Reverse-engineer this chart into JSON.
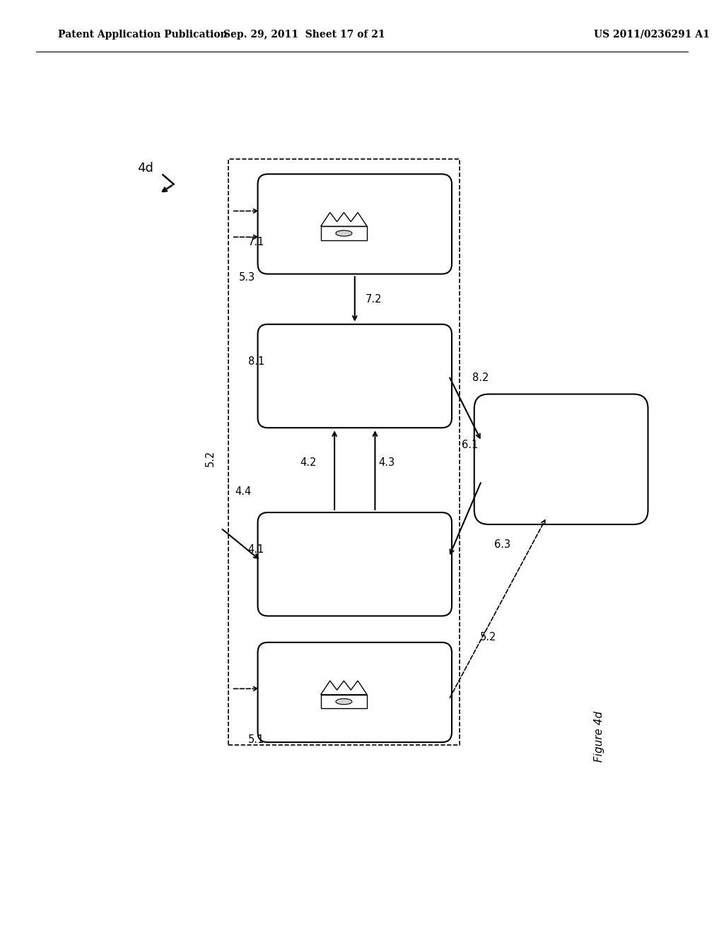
{
  "bg_color": "#ffffff",
  "header_left": "Patent Application Publication",
  "header_mid": "Sep. 29, 2011  Sheet 17 of 21",
  "header_right": "US 2011/0236291 A1",
  "figure_label": "Figure 4d",
  "label_4d": "4d",
  "header_font_size": 10,
  "font_size": 10.5
}
